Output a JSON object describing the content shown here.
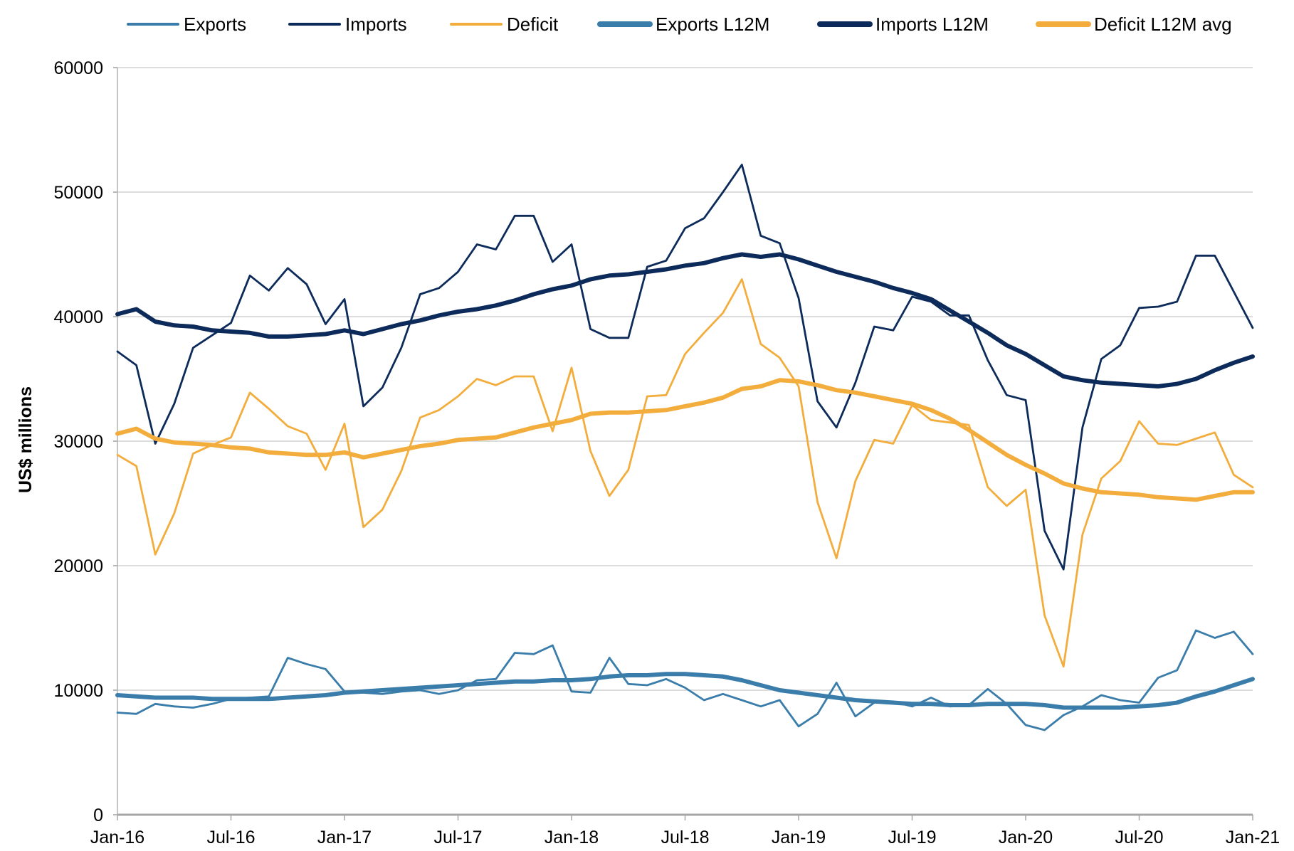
{
  "chart_data": {
    "type": "line",
    "title": "",
    "xlabel": "",
    "ylabel": "US$ millions",
    "ylim": [
      0,
      60000
    ],
    "yticks": [
      "0",
      "10000",
      "20000",
      "30000",
      "40000",
      "50000",
      "60000"
    ],
    "xticks": [
      "Jan-16",
      "Jul-16",
      "Jan-17",
      "Jul-17",
      "Jan-18",
      "Jul-18",
      "Jan-19",
      "Jul-19",
      "Jan-20",
      "Jul-20",
      "Jan-21"
    ],
    "x_range": [
      "Jan-16",
      "Jan-21"
    ],
    "x_frequency": "monthly",
    "grid": "horizontal",
    "legend_position": "top",
    "series": [
      {
        "name": "Exports",
        "color": "#3a7dab",
        "style": "thin",
        "values": [
          8200,
          8100,
          8900,
          8700,
          8600,
          8900,
          9300,
          9400,
          9500,
          12600,
          12100,
          11700,
          9900,
          9800,
          9700,
          9900,
          10000,
          9700,
          10000,
          10800,
          10900,
          13000,
          12900,
          13600,
          9900,
          9800,
          12600,
          10500,
          10400,
          10900,
          10200,
          9200,
          9700,
          9200,
          8700,
          9200,
          7100,
          8100,
          10600,
          7900,
          9000,
          9100,
          8700,
          9400,
          8700,
          8800,
          10100,
          8900,
          7200,
          6800,
          8000,
          8700,
          9600,
          9200,
          9000,
          11000,
          11600,
          14800,
          14200,
          14700,
          12900
        ]
      },
      {
        "name": "Imports",
        "color": "#0d2b5a",
        "style": "thin",
        "values": [
          37200,
          36100,
          29800,
          33000,
          37500,
          38500,
          39500,
          43300,
          42100,
          43900,
          42600,
          39400,
          41400,
          32800,
          34300,
          37500,
          41800,
          42300,
          43600,
          45800,
          45400,
          48100,
          48100,
          44400,
          45800,
          39000,
          38300,
          38300,
          44000,
          44500,
          47100,
          47900,
          50000,
          52200,
          46500,
          45900,
          41500,
          33200,
          31100,
          34700,
          39200,
          38900,
          41600,
          41200,
          40100,
          40100,
          36500,
          33700,
          33300,
          22800,
          19700,
          31100,
          36600,
          37700,
          40700,
          40800,
          41200,
          44900,
          44900,
          42000,
          39100
        ]
      },
      {
        "name": "Deficit",
        "color": "#f2ad3d",
        "style": "thin",
        "values": [
          28900,
          28000,
          20900,
          24200,
          29000,
          29700,
          30300,
          33900,
          32600,
          31200,
          30600,
          27700,
          31400,
          23100,
          24500,
          27600,
          31900,
          32500,
          33600,
          35000,
          34500,
          35200,
          35200,
          30800,
          35900,
          29200,
          25600,
          27700,
          33600,
          33700,
          37000,
          38700,
          40300,
          43000,
          37800,
          36700,
          34400,
          25100,
          20600,
          26800,
          30100,
          29800,
          32900,
          31700,
          31500,
          31300,
          26300,
          24800,
          26100,
          16000,
          11900,
          22500,
          27000,
          28400,
          31600,
          29800,
          29700,
          30200,
          30700,
          27300,
          26300
        ]
      },
      {
        "name": "Exports L12M",
        "color": "#3a7dab",
        "style": "thick",
        "values": [
          9600,
          9500,
          9400,
          9400,
          9400,
          9300,
          9300,
          9300,
          9300,
          9400,
          9500,
          9600,
          9800,
          9900,
          10000,
          10100,
          10200,
          10300,
          10400,
          10500,
          10600,
          10700,
          10700,
          10800,
          10800,
          10900,
          11100,
          11200,
          11200,
          11300,
          11300,
          11200,
          11100,
          10800,
          10400,
          10000,
          9800,
          9600,
          9400,
          9200,
          9100,
          9000,
          8900,
          8900,
          8800,
          8800,
          8900,
          8900,
          8900,
          8800,
          8600,
          8600,
          8600,
          8600,
          8700,
          8800,
          9000,
          9500,
          9900,
          10400,
          10900
        ]
      },
      {
        "name": "Imports L12M",
        "color": "#0d2b5a",
        "style": "thick",
        "values": [
          40200,
          40600,
          39600,
          39300,
          39200,
          38900,
          38800,
          38700,
          38400,
          38400,
          38500,
          38600,
          38900,
          38600,
          39000,
          39400,
          39700,
          40100,
          40400,
          40600,
          40900,
          41300,
          41800,
          42200,
          42500,
          43000,
          43300,
          43400,
          43600,
          43800,
          44100,
          44300,
          44700,
          45000,
          44800,
          45000,
          44600,
          44100,
          43600,
          43200,
          42800,
          42300,
          41900,
          41400,
          40500,
          39600,
          38700,
          37700,
          37000,
          36100,
          35200,
          34900,
          34700,
          34600,
          34500,
          34400,
          34600,
          35000,
          35700,
          36300,
          36800
        ]
      },
      {
        "name": "Deficit L12M avg",
        "color": "#f2ad3d",
        "style": "thick",
        "values": [
          30600,
          31000,
          30200,
          29900,
          29800,
          29700,
          29500,
          29400,
          29100,
          29000,
          28900,
          28900,
          29100,
          28700,
          29000,
          29300,
          29600,
          29800,
          30100,
          30200,
          30300,
          30700,
          31100,
          31400,
          31700,
          32200,
          32300,
          32300,
          32400,
          32500,
          32800,
          33100,
          33500,
          34200,
          34400,
          34900,
          34800,
          34500,
          34100,
          33900,
          33600,
          33300,
          33000,
          32500,
          31800,
          30900,
          29900,
          28900,
          28100,
          27400,
          26600,
          26200,
          25900,
          25800,
          25700,
          25500,
          25400,
          25300,
          25600,
          25900,
          25900
        ]
      }
    ]
  }
}
